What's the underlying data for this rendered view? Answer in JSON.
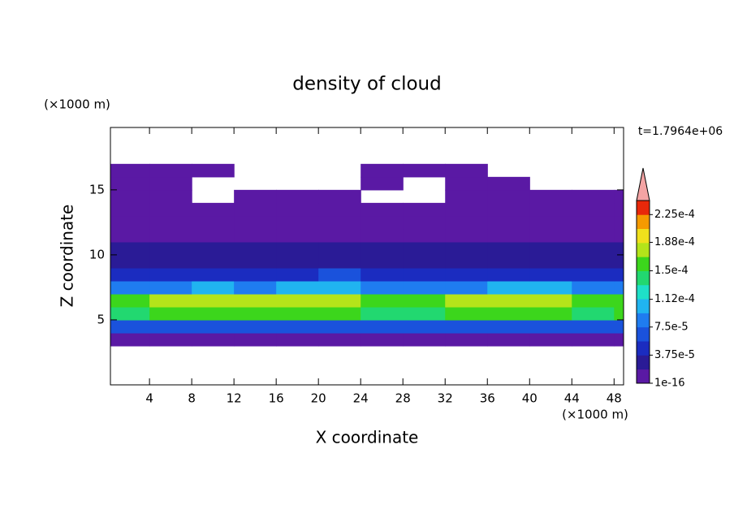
{
  "chart_data": {
    "type": "contour",
    "title": "density of cloud",
    "xlabel": "X coordinate",
    "ylabel": "Z coordinate",
    "x_unit": "(×1000 m)",
    "y_unit": "(×1000 m)",
    "annotation": "t=1.7964e+06",
    "xlim": [
      0.3,
      48.9
    ],
    "ylim": [
      0,
      19.8
    ],
    "xticks": [
      4,
      8,
      12,
      16,
      20,
      24,
      28,
      32,
      36,
      40,
      44,
      48
    ],
    "yticks": [
      5,
      10,
      15
    ],
    "x": [
      2,
      6,
      10,
      14,
      18,
      22,
      26,
      30,
      34,
      38,
      42,
      46,
      50
    ],
    "y": [
      3.5,
      4.5,
      5.5,
      6.5,
      7.5,
      8.5,
      9.5,
      10.5,
      11.5,
      12.5,
      13.5,
      14.5,
      15.5,
      16.5
    ],
    "z": [
      [
        8e-06,
        1.2e-05,
        9e-06,
        1e-05,
        1.1e-05,
        9e-06,
        1e-05,
        1.2e-05,
        9e-06,
        1e-05,
        8e-06,
        1.1e-05,
        1e-05
      ],
      [
        6.5e-05,
        7e-05,
        6e-05,
        7.5e-05,
        6.8e-05,
        7e-05,
        6.2e-05,
        7.2e-05,
        6.6e-05,
        7e-05,
        6.4e-05,
        6.8e-05,
        6.5e-05
      ],
      [
        0.00015,
        0.00016,
        0.000155,
        0.000162,
        0.000158,
        0.000165,
        0.00015,
        0.000145,
        0.00016,
        0.000168,
        0.000155,
        0.00015,
        0.000152
      ],
      [
        0.000165,
        0.000175,
        0.000172,
        0.00018,
        0.00017,
        0.000178,
        0.000162,
        0.000155,
        0.000172,
        0.000185,
        0.00017,
        0.00016,
        0.000162
      ],
      [
        9e-05,
        8.5e-05,
        9.5e-05,
        9e-05,
        0.0001,
        0.00011,
        8.5e-05,
        8e-05,
        9e-05,
        0.000105,
        9.5e-05,
        9e-05,
        9e-05
      ],
      [
        5.5e-05,
        5e-05,
        4.8e-05,
        5.2e-05,
        5e-05,
        6e-05,
        5e-05,
        4.5e-05,
        5e-05,
        5.5e-05,
        5e-05,
        5.2e-05,
        5.5e-05
      ],
      [
        3.2e-05,
        2.8e-05,
        3e-05,
        2.5e-05,
        2.8e-05,
        3.2e-05,
        3e-05,
        2.6e-05,
        2.8e-05,
        3e-05,
        2.5e-05,
        3e-05,
        3e-05
      ],
      [
        2e-05,
        1.9e-05,
        2.1e-05,
        1.9e-05,
        2e-05,
        2.2e-05,
        2.1e-05,
        1.9e-05,
        2e-05,
        2.1e-05,
        1.9e-05,
        2e-05,
        2e-05
      ],
      [
        1.2e-05,
        1e-05,
        1.1e-05,
        9e-06,
        1e-05,
        1.2e-05,
        1.1e-05,
        1e-05,
        1.2e-05,
        1e-05,
        9e-06,
        1.1e-05,
        1e-05
      ],
      [
        5e-06,
        6e-06,
        5e-06,
        4e-06,
        5e-06,
        6e-06,
        5e-06,
        4e-06,
        5e-06,
        6e-06,
        5e-06,
        5e-06,
        5e-06
      ],
      [
        3e-06,
        3e-06,
        3e-06,
        3e-06,
        3e-06,
        3e-06,
        3e-06,
        3e-06,
        3e-06,
        3e-06,
        3e-06,
        3e-06,
        3e-06
      ],
      [
        2e-06,
        2e-06,
        null,
        2e-06,
        2e-06,
        2e-06,
        null,
        null,
        2e-06,
        2e-06,
        2e-06,
        2e-06,
        2e-06
      ],
      [
        1e-06,
        1e-06,
        null,
        null,
        null,
        null,
        1e-06,
        null,
        1e-06,
        1e-06,
        null,
        null,
        null
      ],
      [
        1e-06,
        1e-06,
        1e-06,
        null,
        null,
        null,
        1e-06,
        1e-06,
        1e-06,
        null,
        null,
        null,
        null
      ]
    ],
    "colorbar": {
      "clim": [
        1e-16,
        0.00024375
      ],
      "colors": [
        "#5a19a4",
        "#2a1b96",
        "#1b2cc0",
        "#1a52dc",
        "#1f7cf0",
        "#20b4f0",
        "#1ee0c8",
        "#22d870",
        "#3cd61c",
        "#b4e41a",
        "#f0e01c",
        "#f59a00",
        "#e8280a"
      ],
      "over_color": "#f4a4a4",
      "ticks": [
        {
          "value": 1e-16,
          "label": "1e-16"
        },
        {
          "value": 3.75e-05,
          "label": "3.75e-5"
        },
        {
          "value": 7.5e-05,
          "label": "7.5e-5"
        },
        {
          "value": 0.000112,
          "label": "1.12e-4"
        },
        {
          "value": 0.00015,
          "label": "1.5e-4"
        },
        {
          "value": 0.000188,
          "label": "1.88e-4"
        },
        {
          "value": 0.000225,
          "label": "2.25e-4"
        }
      ]
    }
  }
}
